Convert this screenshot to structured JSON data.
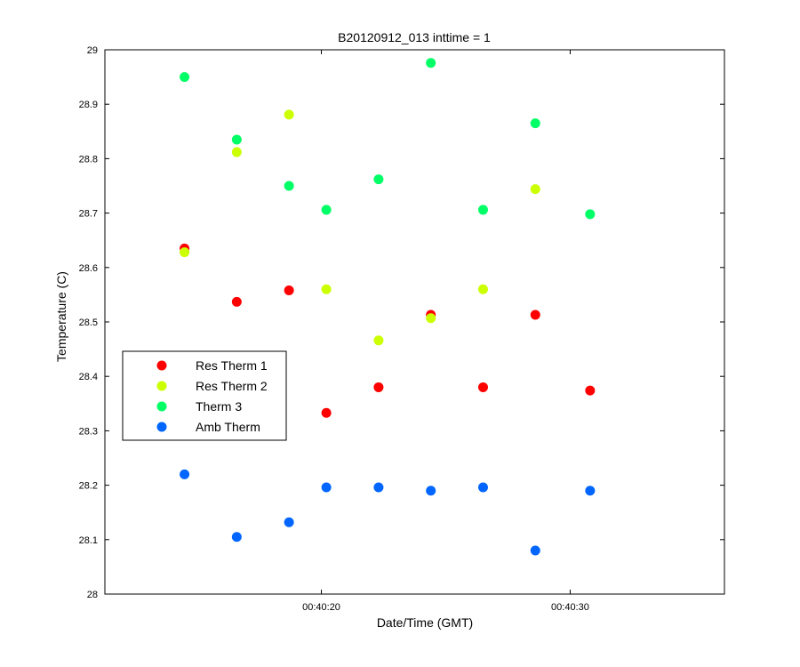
{
  "chart_data": {
    "type": "scatter",
    "title": "B20120912_013 inttime = 1",
    "xlabel": "Date/Time (GMT)",
    "ylabel": "Temperature (C)",
    "x_unit": "seconds",
    "xlim": [
      11.3,
      36.2
    ],
    "ylim": [
      28,
      29
    ],
    "x_ticks": [
      20,
      30
    ],
    "x_tick_labels": [
      "00:40:20",
      "00:40:30"
    ],
    "y_ticks": [
      28,
      28.1,
      28.2,
      28.3,
      28.4,
      28.5,
      28.6,
      28.7,
      28.8,
      28.9,
      29
    ],
    "y_tick_labels": [
      "28",
      "28.1",
      "28.2",
      "28.3",
      "28.4",
      "28.5",
      "28.6",
      "28.7",
      "28.8",
      "28.9",
      "29"
    ],
    "grid": false,
    "legend_position": "middle-left",
    "series": [
      {
        "name": "Res Therm 1",
        "color": "#ff0000",
        "x": [
          14.5,
          16.6,
          18.7,
          20.2,
          22.3,
          24.4,
          26.5,
          28.6,
          30.8
        ],
        "y": [
          28.635,
          28.537,
          28.558,
          28.333,
          28.38,
          28.513,
          28.38,
          28.513,
          28.374
        ]
      },
      {
        "name": "Res Therm 2",
        "color": "#ccff00",
        "x": [
          14.5,
          16.6,
          18.7,
          20.2,
          22.3,
          24.4,
          26.5,
          28.6
        ],
        "y": [
          28.628,
          28.812,
          28.881,
          28.56,
          28.466,
          28.507,
          28.56,
          28.744
        ]
      },
      {
        "name": "Therm 3",
        "color": "#00ff66",
        "x": [
          14.5,
          16.6,
          18.7,
          20.2,
          22.3,
          24.4,
          26.5,
          28.6,
          30.8
        ],
        "y": [
          28.95,
          28.835,
          28.75,
          28.706,
          28.762,
          28.976,
          28.706,
          28.865,
          28.698
        ]
      },
      {
        "name": "Amb Therm",
        "color": "#0066ff",
        "x": [
          14.5,
          16.6,
          18.7,
          20.2,
          22.3,
          24.4,
          26.5,
          28.6,
          30.8
        ],
        "y": [
          28.22,
          28.105,
          28.132,
          28.196,
          28.196,
          28.19,
          28.196,
          28.08,
          28.19
        ]
      }
    ]
  }
}
